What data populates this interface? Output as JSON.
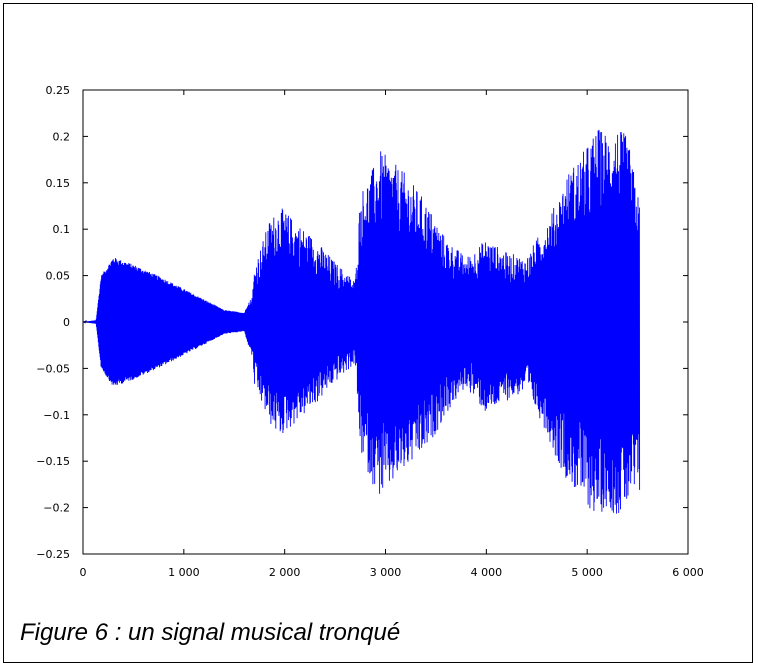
{
  "caption": "Figure 6 : un signal musical tronqué",
  "chart_data": {
    "type": "line",
    "title": "",
    "xlabel": "",
    "ylabel": "",
    "xlim": [
      0,
      6000
    ],
    "ylim": [
      -0.25,
      0.25
    ],
    "grid": false,
    "line_color": "#0000ff",
    "x_ticks": [
      0,
      1000,
      2000,
      3000,
      4000,
      5000,
      6000
    ],
    "x_tick_labels": [
      "0",
      "1 000",
      "2 000",
      "3 000",
      "4 000",
      "5 000",
      "6 000"
    ],
    "y_ticks": [
      -0.25,
      -0.2,
      -0.15,
      -0.1,
      -0.05,
      0,
      0.05,
      0.1,
      0.15,
      0.2,
      0.25
    ],
    "y_tick_labels": [
      "−0.25",
      "−0.2",
      "−0.15",
      "−0.1",
      "−0.05",
      "0",
      "0.05",
      "0.1",
      "0.15",
      "0.2",
      "0.25"
    ],
    "signal_extent_x": [
      0,
      5520
    ],
    "envelope": {
      "x": [
        0,
        130,
        180,
        300,
        500,
        800,
        1100,
        1400,
        1600,
        1680,
        1700,
        1850,
        1950,
        2100,
        2300,
        2500,
        2700,
        2750,
        2850,
        2950,
        3000,
        3200,
        3400,
        3600,
        3800,
        4000,
        4200,
        4400,
        4600,
        4700,
        4800,
        5000,
        5100,
        5200,
        5300,
        5400,
        5500,
        5520
      ],
      "max": [
        0.0,
        0.002,
        0.05,
        0.07,
        0.062,
        0.047,
        0.03,
        0.013,
        0.01,
        0.03,
        0.06,
        0.11,
        0.125,
        0.11,
        0.09,
        0.065,
        0.045,
        0.14,
        0.16,
        0.185,
        0.18,
        0.16,
        0.13,
        0.09,
        0.07,
        0.09,
        0.075,
        0.07,
        0.11,
        0.13,
        0.16,
        0.19,
        0.21,
        0.205,
        0.21,
        0.2,
        0.14,
        0.13
      ],
      "min": [
        0.0,
        -0.002,
        -0.05,
        -0.07,
        -0.062,
        -0.047,
        -0.03,
        -0.013,
        -0.01,
        -0.04,
        -0.07,
        -0.11,
        -0.125,
        -0.11,
        -0.09,
        -0.065,
        -0.045,
        -0.14,
        -0.17,
        -0.19,
        -0.185,
        -0.16,
        -0.14,
        -0.1,
        -0.07,
        -0.1,
        -0.085,
        -0.075,
        -0.12,
        -0.15,
        -0.17,
        -0.2,
        -0.21,
        -0.2,
        -0.21,
        -0.2,
        -0.19,
        -0.19
      ]
    }
  }
}
